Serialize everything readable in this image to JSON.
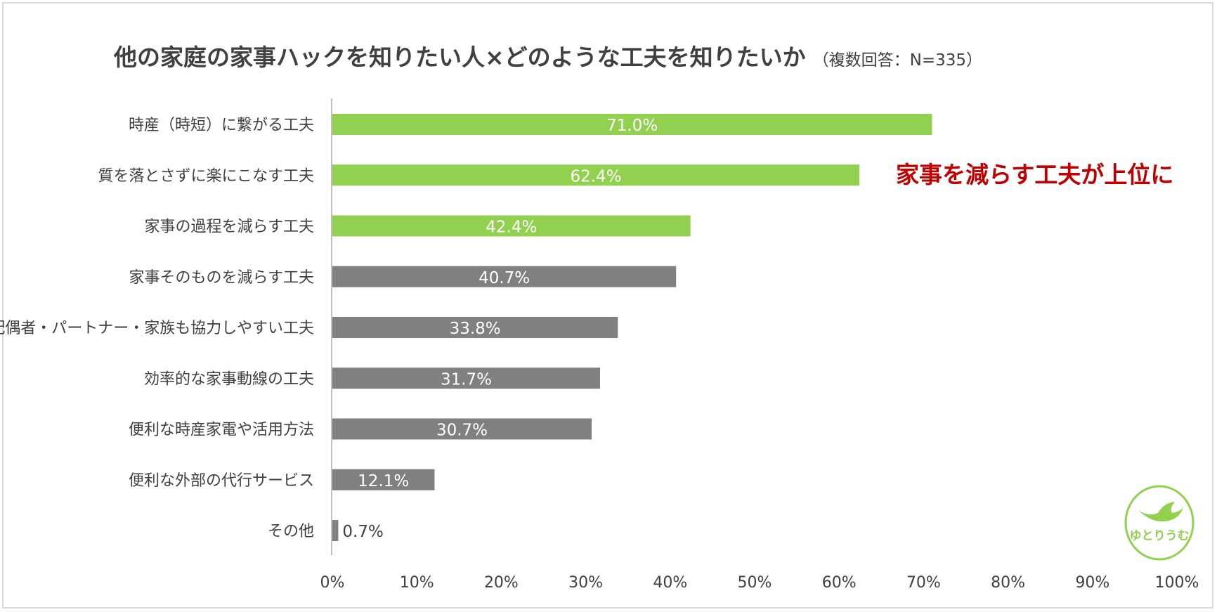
{
  "chart_data": {
    "type": "bar",
    "orientation": "horizontal",
    "title": "他の家庭の家事ハックを知りたい人×どのような工夫を知りたいか",
    "subtitle": "（複数回答：N=335）",
    "categories": [
      "時産（時短）に繋がる工夫",
      "質を落とさずに楽にこなす工夫",
      "家事の過程を減らす工夫",
      "家事そのものを減らす工夫",
      "配偶者・パートナー・家族も協力しやすい工夫",
      "効率的な家事動線の工夫",
      "便利な時産家電や活用方法",
      "便利な外部の代行サービス",
      "その他"
    ],
    "values": [
      71.0,
      62.4,
      42.4,
      40.7,
      33.8,
      31.7,
      30.7,
      12.1,
      0.7
    ],
    "value_labels": [
      "71.0%",
      "62.4%",
      "42.4%",
      "40.7%",
      "33.8%",
      "31.7%",
      "30.7%",
      "12.1%",
      "0.7%"
    ],
    "highlighted_count": 3,
    "xlim": [
      0,
      100
    ],
    "xticks": [
      "0%",
      "10%",
      "20%",
      "30%",
      "40%",
      "50%",
      "60%",
      "70%",
      "80%",
      "90%",
      "100%"
    ],
    "grid": false,
    "annotation": "家事を減らす工夫が上位に",
    "colors": {
      "highlight": "#92d050",
      "default": "#808080",
      "annotation": "#c00000",
      "axis": "#bfbfbf"
    }
  },
  "logo": {
    "text": "ゆとりうむ",
    "color": "#92d050"
  }
}
